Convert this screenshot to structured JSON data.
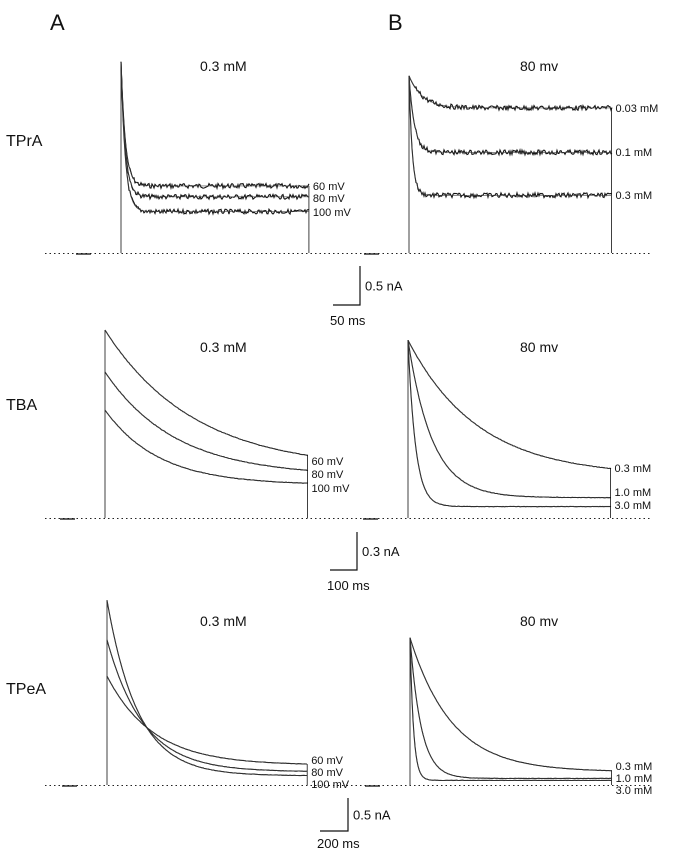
{
  "panel_letters": [
    "A",
    "B"
  ],
  "chart_data": [
    {
      "type": "line",
      "row": "TPrA",
      "column": "A",
      "title": "0.3 mM",
      "units": {
        "x": "ms",
        "y": "nA"
      },
      "duration_ms": 348,
      "series": [
        {
          "name": "60 mV",
          "peak": 2.45,
          "steady": 0.86,
          "tau_ms": 8
        },
        {
          "name": "80 mV",
          "peak": 2.45,
          "steady": 0.72,
          "tau_ms": 8
        },
        {
          "name": "100 mV",
          "peak": 2.45,
          "steady": 0.53,
          "tau_ms": 8
        }
      ]
    },
    {
      "type": "line",
      "row": "TPrA",
      "column": "B",
      "title": "80 mv",
      "units": {
        "x": "ms",
        "y": "nA"
      },
      "duration_ms": 375,
      "series": [
        {
          "name": "0.03 mM",
          "peak": 2.27,
          "steady": 1.86,
          "tau_ms": 25
        },
        {
          "name": "0.1 mM",
          "peak": 2.27,
          "steady": 1.29,
          "tau_ms": 10
        },
        {
          "name": "0.3 mM",
          "peak": 2.27,
          "steady": 0.74,
          "tau_ms": 6
        }
      ]
    },
    {
      "type": "line",
      "row": "TBA",
      "column": "A",
      "title": "0.3 mM",
      "units": {
        "x": "ms",
        "y": "nA"
      },
      "duration_ms": 750,
      "series": [
        {
          "name": "60 mV",
          "peak": 1.48,
          "steady": 0.38,
          "tau_ms": 330
        },
        {
          "name": "80 mV",
          "peak": 1.15,
          "steady": 0.33,
          "tau_ms": 260
        },
        {
          "name": "100 mV",
          "peak": 0.85,
          "steady": 0.26,
          "tau_ms": 200
        }
      ]
    },
    {
      "type": "line",
      "row": "TBA",
      "column": "B",
      "title": "80 mv",
      "units": {
        "x": "ms",
        "y": "nA"
      },
      "duration_ms": 750,
      "series": [
        {
          "name": "0.3 mM",
          "peak": 1.4,
          "steady": 0.33,
          "tau_ms": 260
        },
        {
          "name": "1.0 mM",
          "peak": 1.4,
          "steady": 0.16,
          "tau_ms": 90
        },
        {
          "name": "3.0 mM",
          "peak": 1.4,
          "steady": 0.09,
          "tau_ms": 28
        }
      ]
    },
    {
      "type": "line",
      "row": "TPeA",
      "column": "A",
      "title": "0.3 mM",
      "units": {
        "x": "ms",
        "y": "nA"
      },
      "duration_ms": 1430,
      "series": [
        {
          "name": "60 mV",
          "peak": 1.65,
          "steady": 0.3,
          "tau_ms": 330
        },
        {
          "name": "80 mV",
          "peak": 2.2,
          "steady": 0.2,
          "tau_ms": 260
        },
        {
          "name": "100 mV",
          "peak": 2.8,
          "steady": 0.14,
          "tau_ms": 220
        }
      ]
    },
    {
      "type": "line",
      "row": "TPeA",
      "column": "B",
      "title": "80 mv",
      "units": {
        "x": "ms",
        "y": "nA"
      },
      "duration_ms": 1440,
      "series": [
        {
          "name": "0.3 mM",
          "peak": 2.23,
          "steady": 0.2,
          "tau_ms": 300
        },
        {
          "name": "1.0 mM",
          "peak": 2.23,
          "steady": 0.1,
          "tau_ms": 80
        },
        {
          "name": "3.0 mM",
          "peak": 2.23,
          "steady": 0.07,
          "tau_ms": 25
        }
      ]
    }
  ],
  "scale_bars": [
    {
      "row": "TPrA",
      "current": "0.5 nA",
      "time": "50 ms"
    },
    {
      "row": "TBA",
      "current": "0.3 nA",
      "time": "100 ms"
    },
    {
      "row": "TPeA",
      "current": "0.5 nA",
      "time": "200 ms"
    }
  ],
  "colors": {
    "trace": "#111111",
    "baseline": "#222222"
  }
}
